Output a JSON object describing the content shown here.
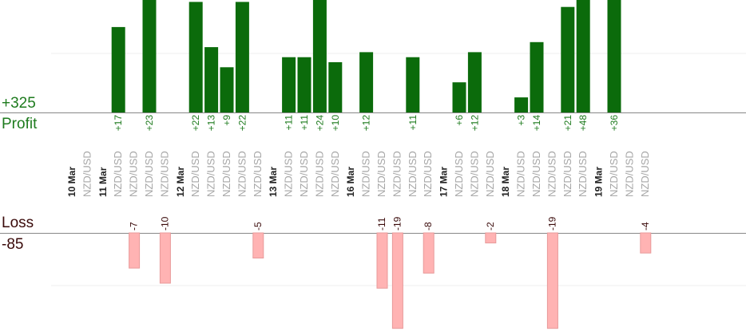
{
  "summary": {
    "profit_total": "+325",
    "profit_label": "Profit",
    "loss_label": "Loss",
    "loss_total": "-85"
  },
  "colors": {
    "profit_bar": "#0b6b0b",
    "loss_bar": "#ffb3b3",
    "profit_text": "#1e7b1e",
    "loss_text": "#3a0a0a"
  },
  "chart_data": {
    "type": "bar",
    "slots": [
      {
        "label": "10 Mar",
        "kind": "date"
      },
      {
        "label": "NZD/USD",
        "kind": "pair",
        "value": null
      },
      {
        "label": "11 Mar",
        "kind": "date"
      },
      {
        "label": "NZD/USD",
        "kind": "pair",
        "value": 17
      },
      {
        "label": "NZD/USD",
        "kind": "pair",
        "value": -7
      },
      {
        "label": "NZD/USD",
        "kind": "pair",
        "value": 23
      },
      {
        "label": "NZD/USD",
        "kind": "pair",
        "value": -10
      },
      {
        "label": "12 Mar",
        "kind": "date"
      },
      {
        "label": "NZD/USD",
        "kind": "pair",
        "value": 22
      },
      {
        "label": "NZD/USD",
        "kind": "pair",
        "value": 13
      },
      {
        "label": "NZD/USD",
        "kind": "pair",
        "value": 9
      },
      {
        "label": "NZD/USD",
        "kind": "pair",
        "value": 22
      },
      {
        "label": "NZD/USD",
        "kind": "pair",
        "value": -5
      },
      {
        "label": "13 Mar",
        "kind": "date"
      },
      {
        "label": "NZD/USD",
        "kind": "pair",
        "value": 11
      },
      {
        "label": "NZD/USD",
        "kind": "pair",
        "value": 11
      },
      {
        "label": "NZD/USD",
        "kind": "pair",
        "value": 24
      },
      {
        "label": "NZD/USD",
        "kind": "pair",
        "value": 10
      },
      {
        "label": "16 Mar",
        "kind": "date"
      },
      {
        "label": "NZD/USD",
        "kind": "pair",
        "value": 12
      },
      {
        "label": "NZD/USD",
        "kind": "pair",
        "value": -11
      },
      {
        "label": "NZD/USD",
        "kind": "pair",
        "value": -19
      },
      {
        "label": "NZD/USD",
        "kind": "pair",
        "value": 11
      },
      {
        "label": "NZD/USD",
        "kind": "pair",
        "value": -8
      },
      {
        "label": "17 Mar",
        "kind": "date"
      },
      {
        "label": "NZD/USD",
        "kind": "pair",
        "value": 6
      },
      {
        "label": "NZD/USD",
        "kind": "pair",
        "value": 12
      },
      {
        "label": "NZD/USD",
        "kind": "pair",
        "value": -2
      },
      {
        "label": "18 Mar",
        "kind": "date"
      },
      {
        "label": "NZD/USD",
        "kind": "pair",
        "value": 3
      },
      {
        "label": "NZD/USD",
        "kind": "pair",
        "value": 14
      },
      {
        "label": "NZD/USD",
        "kind": "pair",
        "value": -19
      },
      {
        "label": "NZD/USD",
        "kind": "pair",
        "value": 21
      },
      {
        "label": "NZD/USD",
        "kind": "pair",
        "value": 48
      },
      {
        "label": "19 Mar",
        "kind": "date"
      },
      {
        "label": "NZD/USD",
        "kind": "pair",
        "value": 36
      },
      {
        "label": "NZD/USD",
        "kind": "pair",
        "value": null
      },
      {
        "label": "NZD/USD",
        "kind": "pair",
        "value": -4
      }
    ],
    "profit_ylim": [
      0,
      19
    ],
    "loss_ylim": [
      0,
      19
    ],
    "grid": "faint horizontal lines"
  }
}
